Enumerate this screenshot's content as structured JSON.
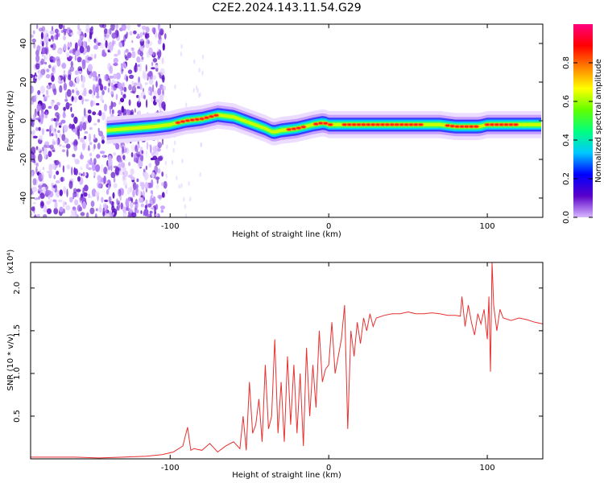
{
  "title": "C2E2.2024.143.11.54.G29",
  "chart_data": [
    {
      "type": "heatmap",
      "xlabel": "Height of straight line (km)",
      "ylabel": "Frequency (Hz)",
      "xlim": [
        -188,
        135
      ],
      "ylim": [
        -50,
        50
      ],
      "xticks": [
        -100,
        0,
        100
      ],
      "yticks": [
        -40,
        -20,
        0,
        20,
        40
      ],
      "colorbar": {
        "label": "Normalized spectral amplitude",
        "range": [
          0,
          1
        ],
        "ticks": [
          0.0,
          0.2,
          0.4,
          0.6,
          0.8
        ],
        "colormap": [
          "#d8b8ff",
          "#5a00c8",
          "#0000ff",
          "#00c8ff",
          "#00ff80",
          "#60ff00",
          "#ffff00",
          "#ff8000",
          "#ff0000",
          "#ff0080"
        ]
      },
      "ridge": [
        {
          "x": -140,
          "y": -5
        },
        {
          "x": -125,
          "y": -4
        },
        {
          "x": -110,
          "y": -3
        },
        {
          "x": -100,
          "y": -2
        },
        {
          "x": -90,
          "y": 0
        },
        {
          "x": -80,
          "y": 1
        },
        {
          "x": -70,
          "y": 3
        },
        {
          "x": -60,
          "y": 2
        },
        {
          "x": -50,
          "y": -1
        },
        {
          "x": -40,
          "y": -4
        },
        {
          "x": -35,
          "y": -6
        },
        {
          "x": -30,
          "y": -5
        },
        {
          "x": -20,
          "y": -4
        },
        {
          "x": -10,
          "y": -2
        },
        {
          "x": -3,
          "y": -1
        },
        {
          "x": 0,
          "y": -2
        },
        {
          "x": 10,
          "y": -2
        },
        {
          "x": 30,
          "y": -2
        },
        {
          "x": 50,
          "y": -2
        },
        {
          "x": 70,
          "y": -2
        },
        {
          "x": 80,
          "y": -3
        },
        {
          "x": 95,
          "y": -3
        },
        {
          "x": 100,
          "y": -2
        },
        {
          "x": 110,
          "y": -2
        },
        {
          "x": 120,
          "y": -2
        },
        {
          "x": 135,
          "y": -2
        }
      ]
    },
    {
      "type": "line",
      "xlabel": "Height of straight line (km)",
      "ylabel": "SNR (10 * v/v)",
      "yscale_note": "(x10⁴)",
      "xlim": [
        -188,
        135
      ],
      "ylim": [
        0,
        2.3
      ],
      "xticks": [
        -100,
        0,
        100
      ],
      "yticks": [
        0.5,
        1.0,
        1.5,
        2.0
      ],
      "color": "#e83030",
      "series": [
        {
          "x": [
            -188,
            -175,
            -160,
            -145,
            -130,
            -115,
            -105,
            -98,
            -92,
            -89,
            -87,
            -85,
            -80,
            -75,
            -70,
            -65,
            -60,
            -56,
            -54,
            -52,
            -50,
            -48,
            -46,
            -44,
            -42,
            -40,
            -38,
            -36,
            -34,
            -32,
            -30,
            -28,
            -26,
            -24,
            -22,
            -20,
            -18,
            -16,
            -14,
            -12,
            -10,
            -8,
            -6,
            -4,
            -2,
            0,
            2,
            4,
            6,
            8,
            10,
            12,
            14,
            16,
            18,
            20,
            22,
            24,
            26,
            28,
            30,
            35,
            40,
            45,
            50,
            55,
            60,
            65,
            70,
            75,
            80,
            83,
            84,
            86,
            88,
            90,
            92,
            94,
            96,
            98,
            100,
            101,
            102,
            103,
            104,
            106,
            108,
            110,
            115,
            120,
            125,
            130,
            135
          ],
          "y": [
            0.02,
            0.02,
            0.02,
            0.01,
            0.02,
            0.03,
            0.05,
            0.08,
            0.15,
            0.37,
            0.1,
            0.12,
            0.1,
            0.18,
            0.08,
            0.15,
            0.2,
            0.12,
            0.5,
            0.1,
            0.9,
            0.3,
            0.4,
            0.7,
            0.2,
            1.1,
            0.35,
            0.5,
            1.4,
            0.3,
            0.9,
            0.2,
            1.2,
            0.4,
            1.1,
            0.3,
            1.0,
            0.15,
            1.3,
            0.5,
            1.1,
            0.6,
            1.5,
            0.9,
            1.05,
            1.1,
            1.6,
            1.0,
            1.2,
            1.4,
            1.8,
            0.35,
            1.5,
            1.2,
            1.6,
            1.35,
            1.65,
            1.5,
            1.7,
            1.55,
            1.65,
            1.68,
            1.7,
            1.7,
            1.72,
            1.7,
            1.7,
            1.71,
            1.7,
            1.68,
            1.68,
            1.67,
            1.9,
            1.55,
            1.8,
            1.6,
            1.45,
            1.7,
            1.58,
            1.75,
            1.4,
            1.9,
            1.02,
            2.3,
            1.8,
            1.5,
            1.75,
            1.65,
            1.62,
            1.65,
            1.63,
            1.6,
            1.58
          ]
        }
      ]
    }
  ]
}
